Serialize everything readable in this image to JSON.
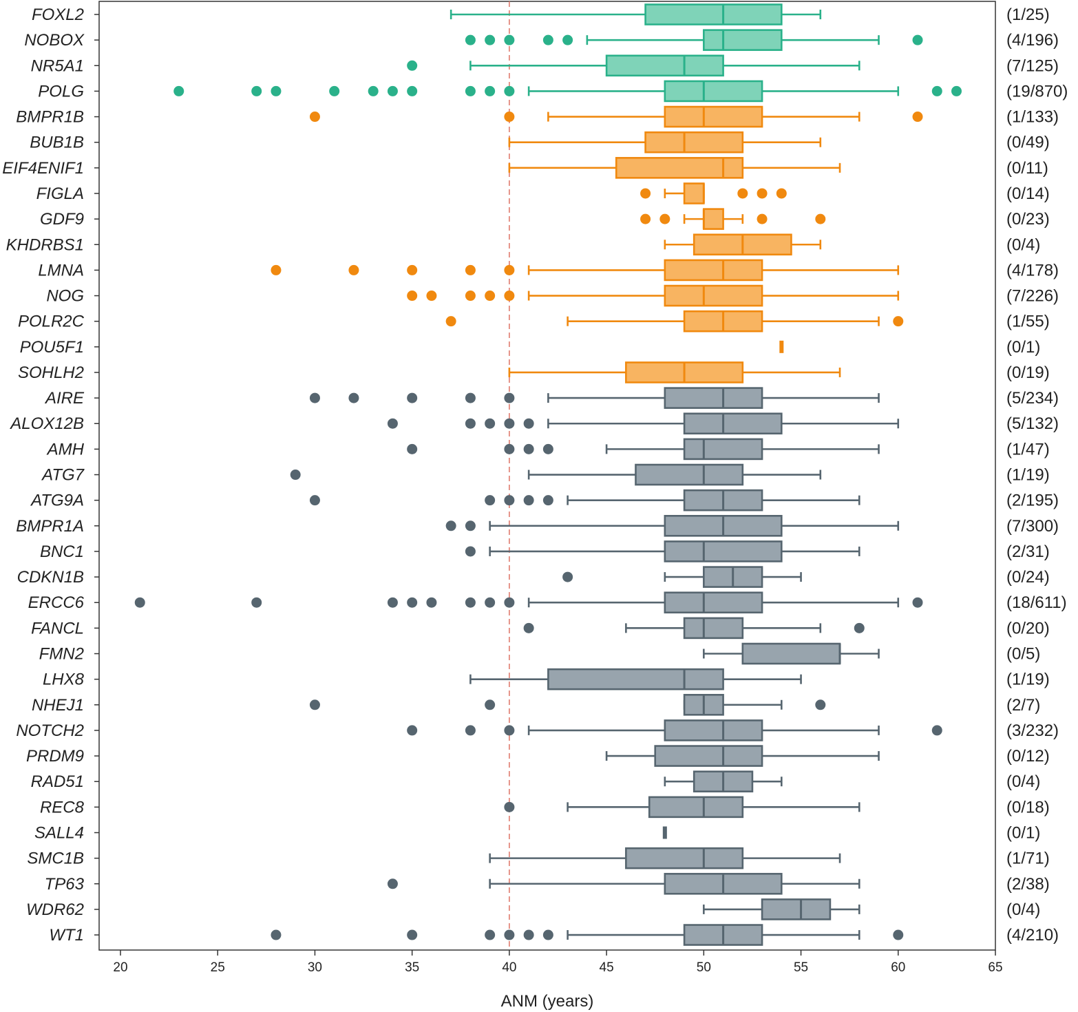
{
  "chart_data": {
    "type": "boxplot",
    "xlabel": "ANM (years)",
    "xlim": [
      20,
      65
    ],
    "xticks": [
      20,
      25,
      30,
      35,
      40,
      45,
      50,
      55,
      60,
      65
    ],
    "reference_line": {
      "value": 40,
      "color": "#e07a6e",
      "style": "dashed"
    },
    "groups": [
      {
        "name": "teal",
        "color": "#2ab18a",
        "fill": "#7fd3b8"
      },
      {
        "name": "orange",
        "color": "#f0890f",
        "fill": "#f8b461"
      },
      {
        "name": "gray",
        "color": "#56656f",
        "fill": "#98a4ad"
      }
    ],
    "rows": [
      {
        "gene": "FOXL2",
        "count": "(1/25)",
        "group": "teal",
        "whisker_low": 37,
        "q1": 47,
        "median": 51,
        "q3": 54,
        "whisker_high": 56,
        "outliers": []
      },
      {
        "gene": "NOBOX",
        "count": "(4/196)",
        "group": "teal",
        "whisker_low": 44,
        "q1": 50,
        "median": 51,
        "q3": 54,
        "whisker_high": 59,
        "outliers": [
          38,
          39,
          40,
          42,
          43,
          61
        ]
      },
      {
        "gene": "NR5A1",
        "count": "(7/125)",
        "group": "teal",
        "whisker_low": 38,
        "q1": 45,
        "median": 49,
        "q3": 51,
        "whisker_high": 58,
        "outliers": [
          35
        ]
      },
      {
        "gene": "POLG",
        "count": "(19/870)",
        "group": "teal",
        "whisker_low": 41,
        "q1": 48,
        "median": 50,
        "q3": 53,
        "whisker_high": 60,
        "outliers": [
          23,
          27,
          28,
          31,
          33,
          34,
          35,
          38,
          39,
          40,
          62,
          63
        ]
      },
      {
        "gene": "BMPR1B",
        "count": "(1/133)",
        "group": "orange",
        "whisker_low": 42,
        "q1": 48,
        "median": 50,
        "q3": 53,
        "whisker_high": 58,
        "outliers": [
          30,
          40,
          61
        ]
      },
      {
        "gene": "BUB1B",
        "count": "(0/49)",
        "group": "orange",
        "whisker_low": 40,
        "q1": 47,
        "median": 49,
        "q3": 52,
        "whisker_high": 56,
        "outliers": []
      },
      {
        "gene": "EIF4ENIF1",
        "count": "(0/11)",
        "group": "orange",
        "whisker_low": 40,
        "q1": 45.5,
        "median": 51,
        "q3": 52,
        "whisker_high": 57,
        "outliers": []
      },
      {
        "gene": "FIGLA",
        "count": "(0/14)",
        "group": "orange",
        "whisker_low": 48,
        "q1": 49,
        "median": 50,
        "q3": 50,
        "whisker_high": 50,
        "outliers": [
          47,
          52,
          53,
          54
        ]
      },
      {
        "gene": "GDF9",
        "count": "(0/23)",
        "group": "orange",
        "whisker_low": 49,
        "q1": 50,
        "median": 50,
        "q3": 51,
        "whisker_high": 52,
        "outliers": [
          47,
          48,
          53,
          56
        ]
      },
      {
        "gene": "KHDRBS1",
        "count": "(0/4)",
        "group": "orange",
        "whisker_low": 48,
        "q1": 49.5,
        "median": 52,
        "q3": 54.5,
        "whisker_high": 56,
        "outliers": []
      },
      {
        "gene": "LMNA",
        "count": "(4/178)",
        "group": "orange",
        "whisker_low": 41,
        "q1": 48,
        "median": 51,
        "q3": 53,
        "whisker_high": 60,
        "outliers": [
          28,
          32,
          35,
          38,
          40
        ]
      },
      {
        "gene": "NOG",
        "count": "(7/226)",
        "group": "orange",
        "whisker_low": 41,
        "q1": 48,
        "median": 50,
        "q3": 53,
        "whisker_high": 60,
        "outliers": [
          35,
          36,
          38,
          39,
          40
        ]
      },
      {
        "gene": "POLR2C",
        "count": "(1/55)",
        "group": "orange",
        "whisker_low": 43,
        "q1": 49,
        "median": 51,
        "q3": 53,
        "whisker_high": 59,
        "outliers": [
          37,
          60
        ]
      },
      {
        "gene": "POU5F1",
        "count": "(0/1)",
        "group": "orange",
        "whisker_low": 54,
        "q1": 54,
        "median": 54,
        "q3": 54,
        "whisker_high": 54,
        "outliers": []
      },
      {
        "gene": "SOHLH2",
        "count": "(0/19)",
        "group": "orange",
        "whisker_low": 40,
        "q1": 46,
        "median": 49,
        "q3": 52,
        "whisker_high": 57,
        "outliers": []
      },
      {
        "gene": "AIRE",
        "count": "(5/234)",
        "group": "gray",
        "whisker_low": 42,
        "q1": 48,
        "median": 51,
        "q3": 53,
        "whisker_high": 59,
        "outliers": [
          30,
          32,
          35,
          38,
          40
        ]
      },
      {
        "gene": "ALOX12B",
        "count": "(5/132)",
        "group": "gray",
        "whisker_low": 42,
        "q1": 49,
        "median": 51,
        "q3": 54,
        "whisker_high": 60,
        "outliers": [
          34,
          38,
          39,
          40,
          41
        ]
      },
      {
        "gene": "AMH",
        "count": "(1/47)",
        "group": "gray",
        "whisker_low": 45,
        "q1": 49,
        "median": 50,
        "q3": 53,
        "whisker_high": 59,
        "outliers": [
          35,
          40,
          41,
          42
        ]
      },
      {
        "gene": "ATG7",
        "count": "(1/19)",
        "group": "gray",
        "whisker_low": 41,
        "q1": 46.5,
        "median": 50,
        "q3": 52,
        "whisker_high": 56,
        "outliers": [
          29
        ]
      },
      {
        "gene": "ATG9A",
        "count": "(2/195)",
        "group": "gray",
        "whisker_low": 43,
        "q1": 49,
        "median": 51,
        "q3": 53,
        "whisker_high": 58,
        "outliers": [
          30,
          39,
          40,
          41,
          42
        ]
      },
      {
        "gene": "BMPR1A",
        "count": "(7/300)",
        "group": "gray",
        "whisker_low": 39,
        "q1": 48,
        "median": 51,
        "q3": 54,
        "whisker_high": 60,
        "outliers": [
          37,
          38
        ]
      },
      {
        "gene": "BNC1",
        "count": "(2/31)",
        "group": "gray",
        "whisker_low": 39,
        "q1": 48,
        "median": 50,
        "q3": 54,
        "whisker_high": 58,
        "outliers": [
          38
        ]
      },
      {
        "gene": "CDKN1B",
        "count": "(0/24)",
        "group": "gray",
        "whisker_low": 48,
        "q1": 50,
        "median": 51.5,
        "q3": 53,
        "whisker_high": 55,
        "outliers": [
          43
        ]
      },
      {
        "gene": "ERCC6",
        "count": "(18/611)",
        "group": "gray",
        "whisker_low": 41,
        "q1": 48,
        "median": 50,
        "q3": 53,
        "whisker_high": 60,
        "outliers": [
          21,
          27,
          34,
          35,
          36,
          38,
          39,
          40,
          61
        ]
      },
      {
        "gene": "FANCL",
        "count": "(0/20)",
        "group": "gray",
        "whisker_low": 46,
        "q1": 49,
        "median": 50,
        "q3": 52,
        "whisker_high": 56,
        "outliers": [
          41,
          58
        ]
      },
      {
        "gene": "FMN2",
        "count": "(0/5)",
        "group": "gray",
        "whisker_low": 50,
        "q1": 52,
        "median": 57,
        "q3": 57,
        "whisker_high": 59,
        "outliers": []
      },
      {
        "gene": "LHX8",
        "count": "(1/19)",
        "group": "gray",
        "whisker_low": 38,
        "q1": 42,
        "median": 49,
        "q3": 51,
        "whisker_high": 55,
        "outliers": []
      },
      {
        "gene": "NHEJ1",
        "count": "(2/7)",
        "group": "gray",
        "whisker_low": 49,
        "q1": 49,
        "median": 50,
        "q3": 51,
        "whisker_high": 54,
        "outliers": [
          30,
          39,
          56
        ]
      },
      {
        "gene": "NOTCH2",
        "count": "(3/232)",
        "group": "gray",
        "whisker_low": 41,
        "q1": 48,
        "median": 51,
        "q3": 53,
        "whisker_high": 59,
        "outliers": [
          35,
          38,
          40,
          62
        ]
      },
      {
        "gene": "PRDM9",
        "count": "(0/12)",
        "group": "gray",
        "whisker_low": 45,
        "q1": 47.5,
        "median": 51,
        "q3": 53,
        "whisker_high": 59,
        "outliers": []
      },
      {
        "gene": "RAD51",
        "count": "(0/4)",
        "group": "gray",
        "whisker_low": 48,
        "q1": 49.5,
        "median": 51,
        "q3": 52.5,
        "whisker_high": 54,
        "outliers": []
      },
      {
        "gene": "REC8",
        "count": "(0/18)",
        "group": "gray",
        "whisker_low": 43,
        "q1": 47.2,
        "median": 50,
        "q3": 52,
        "whisker_high": 58,
        "outliers": [
          40
        ]
      },
      {
        "gene": "SALL4",
        "count": "(0/1)",
        "group": "gray",
        "whisker_low": 48,
        "q1": 48,
        "median": 48,
        "q3": 48,
        "whisker_high": 48,
        "outliers": []
      },
      {
        "gene": "SMC1B",
        "count": "(1/71)",
        "group": "gray",
        "whisker_low": 39,
        "q1": 46,
        "median": 50,
        "q3": 52,
        "whisker_high": 57,
        "outliers": []
      },
      {
        "gene": "TP63",
        "count": "(2/38)",
        "group": "gray",
        "whisker_low": 39,
        "q1": 48,
        "median": 51,
        "q3": 54,
        "whisker_high": 58,
        "outliers": [
          34
        ]
      },
      {
        "gene": "WDR62",
        "count": "(0/4)",
        "group": "gray",
        "whisker_low": 50,
        "q1": 53,
        "median": 55,
        "q3": 56.5,
        "whisker_high": 58,
        "outliers": []
      },
      {
        "gene": "WT1",
        "count": "(4/210)",
        "group": "gray",
        "whisker_low": 43,
        "q1": 49,
        "median": 51,
        "q3": 53,
        "whisker_high": 58,
        "outliers": [
          28,
          35,
          39,
          40,
          41,
          42,
          60
        ]
      }
    ]
  }
}
